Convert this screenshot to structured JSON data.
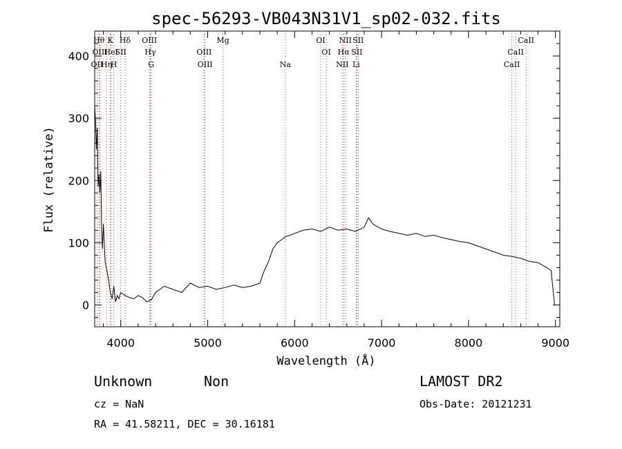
{
  "chart_data": {
    "type": "line",
    "title": "spec-56293-VB043N31V1_sp02-032.fits",
    "xlabel": "Wavelength (Å)",
    "ylabel": "Flux (relative)",
    "xlim": [
      3700,
      9050
    ],
    "ylim": [
      -35,
      440
    ],
    "xticks": [
      4000,
      5000,
      6000,
      7000,
      8000,
      9000
    ],
    "yticks": [
      0,
      100,
      200,
      300,
      400
    ],
    "xtick_labels": [
      "4000",
      "5000",
      "6000",
      "7000",
      "8000",
      "9000"
    ],
    "ytick_labels": [
      "0",
      "100",
      "200",
      "300",
      "400"
    ],
    "line_color": "#000000",
    "marker_color": "#cc3333",
    "spectrum": {
      "x": [
        3700,
        3710,
        3720,
        3730,
        3740,
        3750,
        3760,
        3770,
        3780,
        3790,
        3800,
        3820,
        3840,
        3860,
        3880,
        3900,
        3920,
        3940,
        3960,
        3980,
        4000,
        4050,
        4100,
        4150,
        4200,
        4250,
        4300,
        4350,
        4400,
        4500,
        4600,
        4700,
        4800,
        4900,
        5000,
        5100,
        5200,
        5300,
        5400,
        5500,
        5600,
        5650,
        5700,
        5750,
        5800,
        5850,
        5900,
        5950,
        6000,
        6100,
        6200,
        6300,
        6400,
        6500,
        6600,
        6700,
        6800,
        6850,
        6900,
        7000,
        7100,
        7200,
        7300,
        7400,
        7500,
        7600,
        7700,
        7800,
        7900,
        8000,
        8100,
        8200,
        8300,
        8400,
        8500,
        8600,
        8700,
        8800,
        8900,
        8950,
        8990
      ],
      "y": [
        320,
        295,
        250,
        285,
        190,
        210,
        180,
        215,
        120,
        90,
        130,
        70,
        55,
        40,
        20,
        10,
        30,
        5,
        15,
        10,
        20,
        15,
        12,
        10,
        15,
        12,
        5,
        8,
        20,
        30,
        25,
        20,
        35,
        28,
        30,
        25,
        28,
        32,
        28,
        30,
        35,
        55,
        70,
        90,
        100,
        105,
        110,
        112,
        115,
        120,
        122,
        118,
        125,
        120,
        122,
        118,
        125,
        140,
        130,
        122,
        118,
        115,
        112,
        115,
        110,
        112,
        108,
        105,
        102,
        100,
        95,
        90,
        85,
        80,
        78,
        75,
        70,
        68,
        60,
        55,
        0
      ]
    },
    "lines": [
      {
        "label": "OII",
        "x": 3727,
        "row": 2
      },
      {
        "label": "Hθ",
        "x": 3750,
        "row": 0
      },
      {
        "label": "OIII",
        "x": 3760,
        "row": 1
      },
      {
        "label": "Hη",
        "x": 3836,
        "row": 2
      },
      {
        "label": "K",
        "x": 3880,
        "row": 0
      },
      {
        "label": "HeI",
        "x": 3889,
        "row": 1
      },
      {
        "label": "H",
        "x": 3920,
        "row": 2
      },
      {
        "label": "SII",
        "x": 4000,
        "row": 1
      },
      {
        "label": "Hδ",
        "x": 4050,
        "row": 0
      },
      {
        "label": "OIII",
        "x": 4330,
        "row": 0
      },
      {
        "label": "Hγ",
        "x": 4340,
        "row": 1
      },
      {
        "label": "G",
        "x": 4350,
        "row": 2
      },
      {
        "label": "OIII",
        "x": 4959,
        "row": 1
      },
      {
        "label": "OIII",
        "x": 4970,
        "row": 2
      },
      {
        "label": "Mg",
        "x": 5175,
        "row": 0
      },
      {
        "label": "Na",
        "x": 5893,
        "row": 2
      },
      {
        "label": "OI",
        "x": 6300,
        "row": 0
      },
      {
        "label": "OI",
        "x": 6364,
        "row": 1
      },
      {
        "label": "NII",
        "x": 6548,
        "row": 2
      },
      {
        "label": "NII",
        "x": 6584,
        "row": 0
      },
      {
        "label": "Hα",
        "x": 6563,
        "row": 1
      },
      {
        "label": "Li",
        "x": 6708,
        "row": 2
      },
      {
        "label": "SII",
        "x": 6716,
        "row": 1
      },
      {
        "label": "SII",
        "x": 6731,
        "row": 0
      },
      {
        "label": "CaII",
        "x": 8498,
        "row": 2
      },
      {
        "label": "CaII",
        "x": 8542,
        "row": 1
      },
      {
        "label": "CaII",
        "x": 8662,
        "row": 0
      }
    ]
  },
  "footer": {
    "class_text": "Unknown",
    "subclass_text": "Non",
    "survey_text": "LAMOST DR2",
    "cz_text": "cz = NaN",
    "obsdate_text": "Obs-Date: 20121231",
    "radec_text": "RA =  41.58211, DEC =  30.16181"
  }
}
